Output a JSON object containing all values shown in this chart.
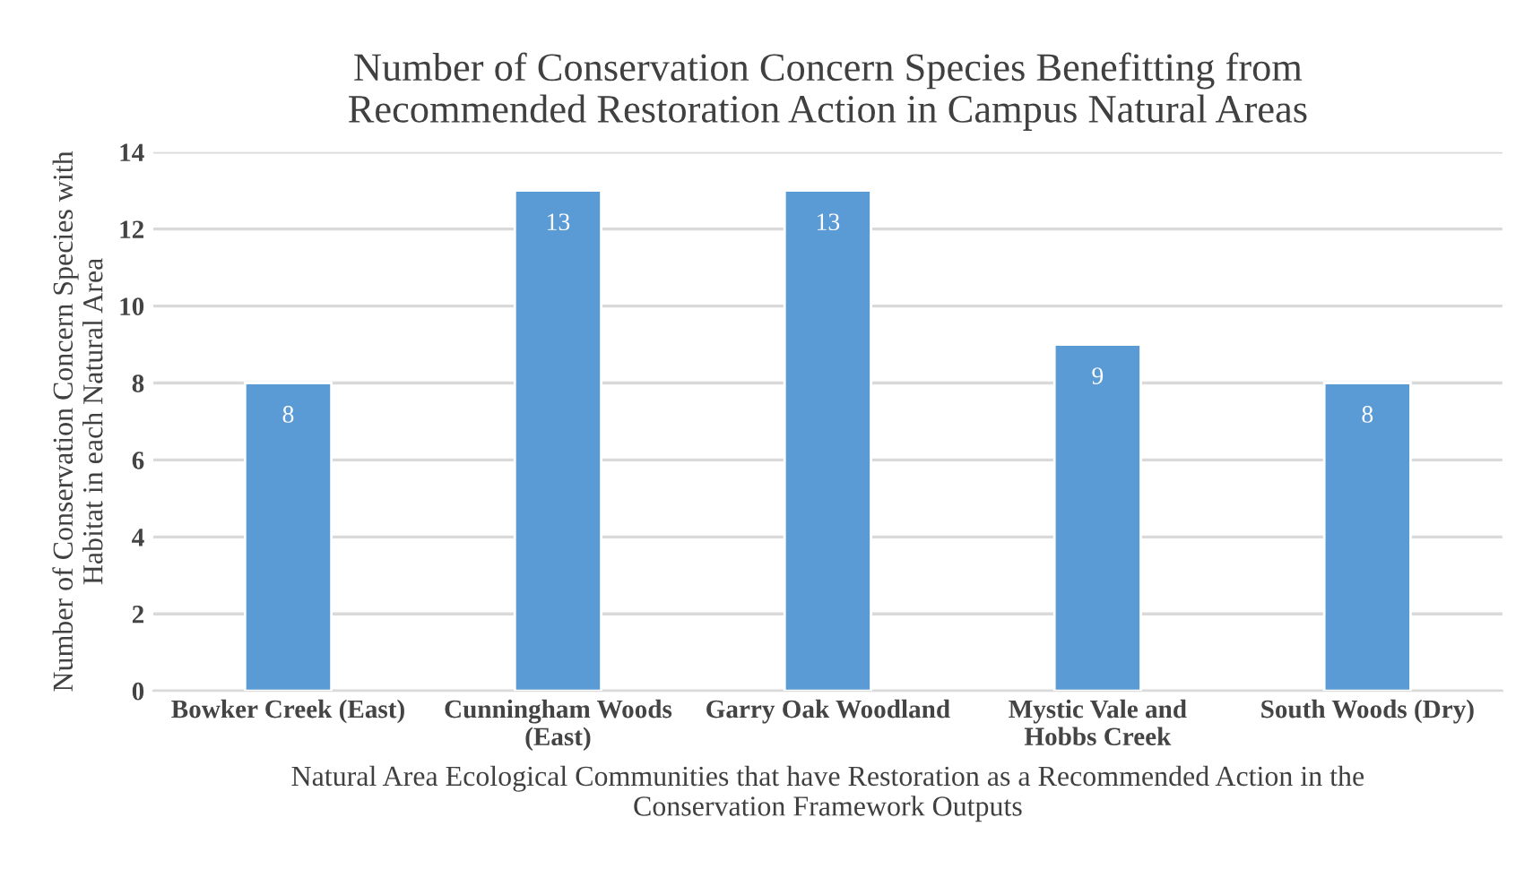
{
  "chart_data": {
    "type": "bar",
    "title": "Number of Conservation Concern Species Benefitting from\nRecommended Restoration Action in Campus Natural Areas",
    "xlabel": "Natural Area Ecological Communities that have Restoration as a Recommended Action in the\nConservation Framework Outputs",
    "ylabel": "Number of Conservation Concern Species with\nHabitat in each Natural Area",
    "categories": [
      "Bowker Creek (East)",
      "Cunningham Woods\n(East)",
      "Garry Oak Woodland",
      "Mystic Vale and\nHobbs Creek",
      "South Woods (Dry)"
    ],
    "values": [
      8,
      13,
      13,
      9,
      8
    ],
    "color": "#5b9bd5",
    "ylim": [
      0,
      14
    ],
    "yticks": [
      0,
      2,
      4,
      6,
      8,
      10,
      12,
      14
    ],
    "grid": "y",
    "data_labels": true,
    "legend": false
  }
}
